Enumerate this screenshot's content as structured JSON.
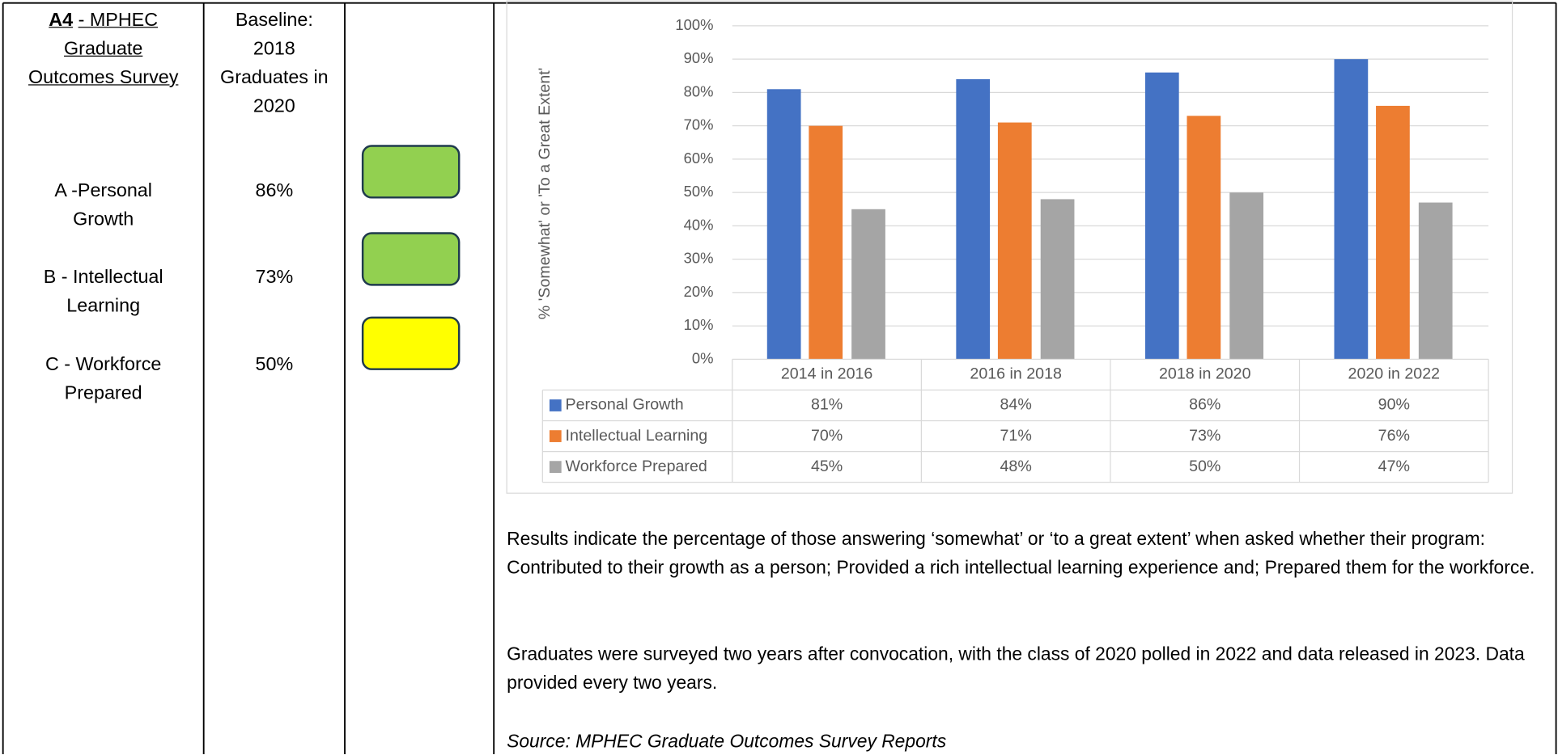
{
  "table": {
    "title_code": "A4",
    "title_rest": "- MPHEC Graduate Outcomes Survey",
    "baseline": "Baseline: 2018 Graduates in 2020",
    "rows": [
      {
        "label": "A -Personal Growth",
        "value": "86%",
        "status_color": "#92d050"
      },
      {
        "label": "B - Intellectual Learning",
        "value": "73%",
        "status_color": "#92d050"
      },
      {
        "label": "C - Workforce Prepared",
        "value": "50%",
        "status_color": "#ffff00"
      }
    ]
  },
  "chart_data": {
    "type": "bar",
    "y_label": "% 'Somewhat' or 'To a Great Extent'",
    "categories": [
      "2014 in 2016",
      "2016 in 2018",
      "2018 in 2020",
      "2020 in 2022"
    ],
    "series": [
      {
        "name": "Personal Growth",
        "color": "#4472c4",
        "values": [
          81,
          84,
          86,
          90
        ],
        "value_labels": [
          "81%",
          "84%",
          "86%",
          "90%"
        ]
      },
      {
        "name": "Intellectual Learning",
        "color": "#ed7d31",
        "values": [
          70,
          71,
          73,
          76
        ],
        "value_labels": [
          "70%",
          "71%",
          "73%",
          "76%"
        ]
      },
      {
        "name": "Workforce Prepared",
        "color": "#a5a5a5",
        "values": [
          45,
          48,
          50,
          47
        ],
        "value_labels": [
          "45%",
          "48%",
          "50%",
          "47%"
        ]
      }
    ],
    "ylim": [
      0,
      100
    ],
    "yticks": [
      {
        "value": 0,
        "label": "0%"
      },
      {
        "value": 10,
        "label": "10%"
      },
      {
        "value": 20,
        "label": "20%"
      },
      {
        "value": 30,
        "label": "30%"
      },
      {
        "value": 40,
        "label": "40%"
      },
      {
        "value": 50,
        "label": "50%"
      },
      {
        "value": 60,
        "label": "60%"
      },
      {
        "value": 70,
        "label": "70%"
      },
      {
        "value": 80,
        "label": "80%"
      },
      {
        "value": 90,
        "label": "90%"
      },
      {
        "value": 100,
        "label": "100%"
      }
    ],
    "grid": true
  },
  "notes": [
    "Results indicate the percentage of those answering ‘somewhat’ or ‘to a great extent’ when asked whether their program: Contributed to their growth as a person; Provided a rich intellectual learning experience and; Prepared them for the workforce.",
    "Graduates were surveyed two years after convocation, with the class of 2020 polled in 2022 and data released in 2023. Data provided every two years.",
    "Source: MPHEC Graduate Outcomes Survey Reports"
  ]
}
